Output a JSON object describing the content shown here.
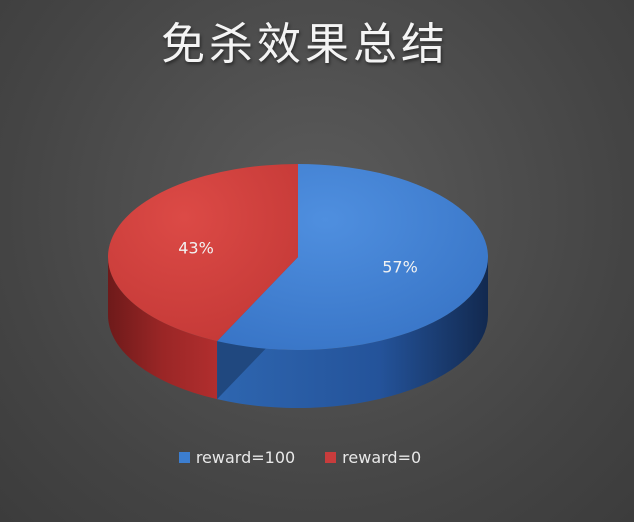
{
  "chart_data": {
    "type": "pie",
    "title": "免杀效果总结",
    "slices": [
      {
        "label": "reward=100",
        "value": 57,
        "display": "57%",
        "color": "#3c7ed0"
      },
      {
        "label": "reward=0",
        "value": 43,
        "display": "43%",
        "color": "#c83c3c"
      }
    ],
    "legend_position": "bottom"
  }
}
